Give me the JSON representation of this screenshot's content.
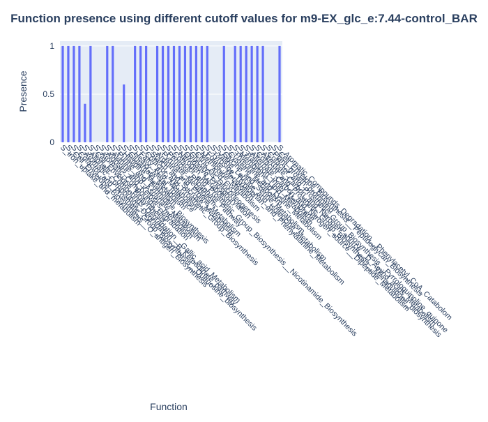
{
  "chart_data": {
    "type": "bar",
    "title": "Function presence using different cutoff values for m9-EX_glc_e:7.44-control_BAR",
    "x_label": "Function",
    "y_label": "Presence",
    "categories": [
      "S_Iron_uptake_and_metabolism",
      "S_Cell_Envelope_Biosynthesis__O_antigen_Biosynthesis",
      "S_Cofactor_and_Prosthetic_Group_Biosynthesis__Queuosine_biosynthesis",
      "S_Aromatic_Compounds_Degradation__B_Ketoadipate_pathway",
      "S_Aliphatic_Compounds_Degradation__Gallic_acid_Metabolism",
      "S_Cell_Envelope_Biosynthesis",
      "S_Aromatic_Compounds_Degradation",
      "S_Aldoses_and_Ketoses_metabolism",
      "S_Alanine_and_Aspartate_Metabolism",
      "S_Purine_and_Pyrimidine_Biosynthesis",
      "S_Histidine_Metabolism",
      "S_Glutamate_Metabolism",
      "S_Heavy_Metal_Tolerance",
      "S_Fatty_Acid_Metabolism",
      "S_Cofactor_and_Prosthetic_Group_Biosynthesis",
      "S_Starch_and_Sucrose_Metabolism",
      "S_Arginine_and_Proline_Metabolism",
      "S_Pyruvate_Metabolism",
      "S_Pentose_Phosphate_Pathway",
      "S_Cofactor_and_Prosthetic_Group_Biosynthesis__Nicotinamide_Biosynthesis",
      "S_Nitrogen_Metabolism",
      "S_Oxidative_Phosphorylation",
      "S_Glycolysis_Gluconeogenesis",
      "S_Citric_Acid_Cycle",
      "S_Methionine_Metabolism",
      "S_Folate_Metabolism",
      "S_Tyrosine_Tryptophan_and_Phenylalanine_Metabolism",
      "S_Valine_Leucine_and_Isoleucine_Metabolism",
      "S_Glycine_and_Serine_Metabolism",
      "S_Cysteine_Metabolism",
      "S_Threonine_and_Lysine_Metabolism",
      "S_Membrane_Lipid_Metabolism",
      "S_Transport_Inner_Membrane",
      "S_Alternate_Carbon_and_Nitrogen_source__Dipeptide_Metabolism",
      "S_Cofactor_and_Prosthetic_Group_Biosynthesis__Menaquinone_biosynthesis",
      "S_Alternate_Carbon_and_Nitrogen_source__D_Amino_acids_Metabolism",
      "S_Cofactor_and_Prosthetic_Group_Biosynthesis__Pyrroloquinoline_quinone",
      "S_Plant_growth_promoting",
      "S_Cell_Envelope_Biosynthesis__Peptidoglycan_Biosynthesis",
      "S_Aromatic_Compounds_Degradation__Phenylacetyl_CoA_Catabolom"
    ],
    "values": [
      1,
      1,
      1,
      1,
      0.4,
      1,
      0,
      0,
      1,
      1,
      0,
      0.6,
      0,
      1,
      1,
      1,
      0,
      1,
      1,
      1,
      1,
      1,
      1,
      1,
      1,
      1,
      1,
      0,
      0,
      1,
      0,
      1,
      1,
      1,
      1,
      1,
      1,
      0,
      0,
      1
    ],
    "color": "#636efa",
    "ylim": [
      0,
      1.05
    ],
    "yticks": [
      0,
      0.5,
      1
    ],
    "grid": true
  }
}
